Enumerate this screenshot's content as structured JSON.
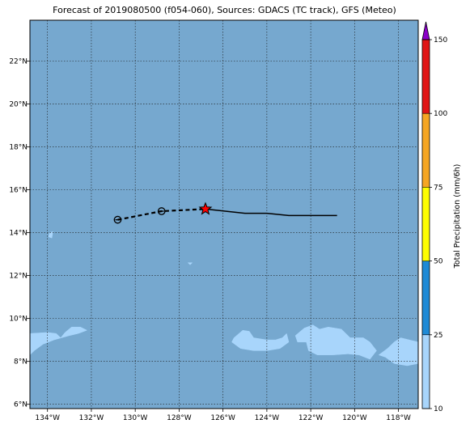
{
  "title": "Forecast of 2019080500 (f054-060), Sources: GDACS (TC track), GFS (Meteo)",
  "map": {
    "lon_range": [
      -134.8,
      -117.1
    ],
    "lat_range": [
      5.8,
      23.9
    ],
    "lon_ticks": [
      {
        "v": -134,
        "label": "134°W"
      },
      {
        "v": -132,
        "label": "132°W"
      },
      {
        "v": -130,
        "label": "130°W"
      },
      {
        "v": -128,
        "label": "128°W"
      },
      {
        "v": -126,
        "label": "126°W"
      },
      {
        "v": -124,
        "label": "124°W"
      },
      {
        "v": -122,
        "label": "122°W"
      },
      {
        "v": -120,
        "label": "120°W"
      },
      {
        "v": -118,
        "label": "118°W"
      }
    ],
    "lat_ticks": [
      {
        "v": 6,
        "label": "6°N"
      },
      {
        "v": 8,
        "label": "8°N"
      },
      {
        "v": 10,
        "label": "10°N"
      },
      {
        "v": 12,
        "label": "12°N"
      },
      {
        "v": 14,
        "label": "14°N"
      },
      {
        "v": 16,
        "label": "16°N"
      },
      {
        "v": 18,
        "label": "18°N"
      },
      {
        "v": 20,
        "label": "20°N"
      },
      {
        "v": 22,
        "label": "22°N"
      }
    ],
    "colors": {
      "ocean": "#76a8cf",
      "light_precip": "#a8d5fb",
      "track": "#000000",
      "star": "#ff0000"
    },
    "track_past": [
      [
        -126.8,
        15.1
      ],
      [
        -125.0,
        14.9
      ],
      [
        -124.0,
        14.9
      ],
      [
        -123.0,
        14.8
      ],
      [
        -122.0,
        14.8
      ],
      [
        -120.8,
        14.8
      ]
    ],
    "track_forecast": [
      [
        -130.8,
        14.6
      ],
      [
        -129.8,
        14.8
      ],
      [
        -128.8,
        15.0
      ],
      [
        -127.8,
        15.05
      ],
      [
        -126.8,
        15.1
      ]
    ],
    "forecast_points": [
      [
        -130.8,
        14.6
      ],
      [
        -128.8,
        15.0
      ]
    ],
    "current_position": [
      -126.8,
      15.1
    ],
    "precip_regions": [
      [
        [
          -134.8,
          9.3
        ],
        [
          -134.0,
          9.35
        ],
        [
          -133.6,
          9.3
        ],
        [
          -133.4,
          9.1
        ],
        [
          -133.2,
          9.35
        ],
        [
          -132.9,
          9.6
        ],
        [
          -132.5,
          9.6
        ],
        [
          -132.2,
          9.45
        ],
        [
          -132.6,
          9.3
        ],
        [
          -133.0,
          9.2
        ],
        [
          -133.7,
          9.0
        ],
        [
          -134.2,
          8.8
        ],
        [
          -134.6,
          8.5
        ],
        [
          -134.8,
          8.3
        ]
      ],
      [
        [
          -125.5,
          9.1
        ],
        [
          -125.1,
          9.45
        ],
        [
          -124.8,
          9.4
        ],
        [
          -124.6,
          9.1
        ],
        [
          -124.0,
          9.0
        ],
        [
          -123.6,
          9.0
        ],
        [
          -123.3,
          9.1
        ],
        [
          -123.1,
          9.3
        ],
        [
          -123.0,
          8.9
        ],
        [
          -123.4,
          8.6
        ],
        [
          -124.0,
          8.5
        ],
        [
          -124.6,
          8.5
        ],
        [
          -125.2,
          8.6
        ],
        [
          -125.6,
          8.9
        ]
      ],
      [
        [
          -122.7,
          9.2
        ],
        [
          -122.3,
          9.55
        ],
        [
          -121.9,
          9.7
        ],
        [
          -121.6,
          9.5
        ],
        [
          -121.2,
          9.6
        ],
        [
          -120.6,
          9.5
        ],
        [
          -120.2,
          9.1
        ],
        [
          -119.6,
          9.1
        ],
        [
          -119.3,
          8.9
        ],
        [
          -119.0,
          8.5
        ],
        [
          -119.3,
          8.1
        ],
        [
          -119.8,
          8.3
        ],
        [
          -120.3,
          8.35
        ],
        [
          -121.0,
          8.3
        ],
        [
          -121.7,
          8.3
        ],
        [
          -122.1,
          8.5
        ],
        [
          -122.2,
          8.9
        ],
        [
          -122.6,
          8.9
        ]
      ],
      [
        [
          -117.9,
          9.1
        ],
        [
          -117.1,
          8.9
        ],
        [
          -117.1,
          7.9
        ],
        [
          -117.6,
          7.8
        ],
        [
          -118.2,
          7.9
        ],
        [
          -118.6,
          8.2
        ],
        [
          -118.9,
          8.3
        ],
        [
          -118.5,
          8.6
        ],
        [
          -118.2,
          8.9
        ]
      ],
      [
        [
          -133.9,
          14.0
        ],
        [
          -133.75,
          14.05
        ],
        [
          -133.8,
          13.75
        ],
        [
          -133.95,
          13.8
        ]
      ],
      [
        [
          -127.6,
          12.6
        ],
        [
          -127.4,
          12.6
        ],
        [
          -127.5,
          12.5
        ]
      ]
    ]
  },
  "colorbar": {
    "label": "Total Precipitation (mm/6h)",
    "ticks": [
      {
        "v": 10,
        "label": "10"
      },
      {
        "v": 25,
        "label": "25"
      },
      {
        "v": 50,
        "label": "50"
      },
      {
        "v": 75,
        "label": "75"
      },
      {
        "v": 100,
        "label": "100"
      },
      {
        "v": 150,
        "label": "150"
      }
    ],
    "segments": [
      {
        "from": 10,
        "to": 25,
        "color": "#a8d5fb"
      },
      {
        "from": 25,
        "to": 50,
        "color": "#1e8ad6"
      },
      {
        "from": 50,
        "to": 75,
        "color": "#ffff00"
      },
      {
        "from": 75,
        "to": 100,
        "color": "#f5a623"
      },
      {
        "from": 100,
        "to": 150,
        "color": "#e01515"
      }
    ],
    "extend_color": "#8a00c8"
  }
}
